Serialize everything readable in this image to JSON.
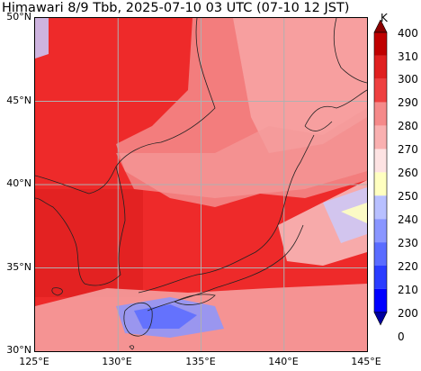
{
  "title": "Himawari 8/9 Tbb, 2025-07-10 03 UTC (07-10 12 JST)",
  "map": {
    "lon_range": [
      125,
      145
    ],
    "lat_range": [
      30,
      50
    ],
    "gridlines": true,
    "lon_ticks": [
      {
        "value": 125,
        "label": "125°E"
      },
      {
        "value": 130,
        "label": "130°E"
      },
      {
        "value": 135,
        "label": "135°E"
      },
      {
        "value": 140,
        "label": "140°E"
      },
      {
        "value": 145,
        "label": "145°E"
      }
    ],
    "lat_ticks": [
      {
        "value": 50,
        "label": "50°N"
      },
      {
        "value": 45,
        "label": "45°N"
      },
      {
        "value": 40,
        "label": "40°N"
      },
      {
        "value": 35,
        "label": "35°N"
      },
      {
        "value": 30,
        "label": "30°N"
      }
    ],
    "coastline_color": "#222222",
    "grid_color": "#b0b0b0"
  },
  "colorbar": {
    "unit": "K",
    "levels": [
      0,
      200,
      210,
      220,
      230,
      240,
      250,
      260,
      270,
      280,
      290,
      300,
      310,
      400
    ],
    "labels": [
      "400",
      "310",
      "300",
      "290",
      "280",
      "270",
      "260",
      "250",
      "240",
      "230",
      "220",
      "210",
      "200",
      "0"
    ],
    "colors": [
      "#0000a0",
      "#0000ff",
      "#2a3cff",
      "#5a6cff",
      "#8a96ff",
      "#b8c0ff",
      "#ffffc0",
      "#fde3e3",
      "#f9b0b0",
      "#f58a8a",
      "#ee4040",
      "#e02020",
      "#c00000",
      "#8b0000"
    ]
  }
}
